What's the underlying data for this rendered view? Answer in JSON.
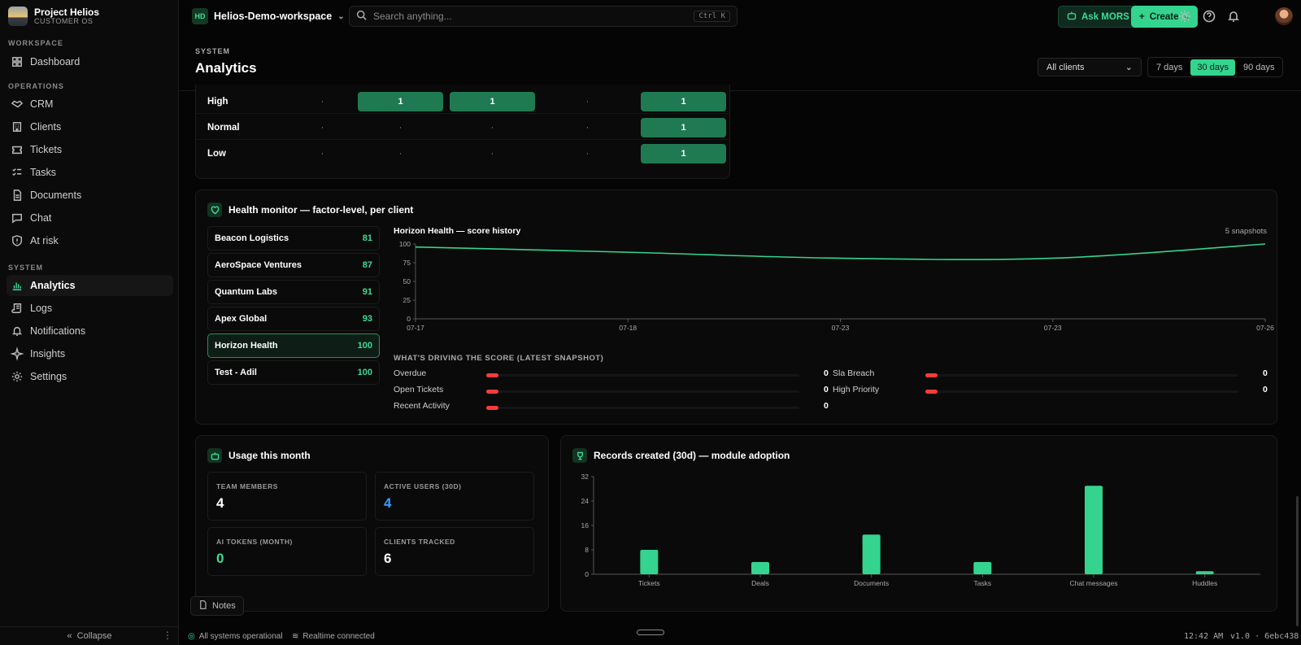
{
  "brand": {
    "title": "Project Helios",
    "subtitle": "CUSTOMER OS"
  },
  "sidebar": {
    "sections": [
      {
        "label": "WORKSPACE"
      },
      {
        "label": "OPERATIONS"
      },
      {
        "label": "SYSTEM"
      }
    ],
    "items": [
      {
        "label": "Dashboard",
        "icon": "grid-icon"
      },
      {
        "label": "CRM",
        "icon": "handshake-icon"
      },
      {
        "label": "Clients",
        "icon": "building-icon"
      },
      {
        "label": "Tickets",
        "icon": "ticket-icon"
      },
      {
        "label": "Tasks",
        "icon": "list-check-icon"
      },
      {
        "label": "Documents",
        "icon": "file-icon"
      },
      {
        "label": "Chat",
        "icon": "chat-icon"
      },
      {
        "label": "At risk",
        "icon": "shield-icon"
      },
      {
        "label": "Analytics",
        "icon": "bar-chart-icon",
        "active": true
      },
      {
        "label": "Logs",
        "icon": "scroll-icon"
      },
      {
        "label": "Notifications",
        "icon": "bell-icon"
      },
      {
        "label": "Insights",
        "icon": "sparkle-icon"
      },
      {
        "label": "Settings",
        "icon": "gear-icon"
      }
    ],
    "collapse_label": "Collapse"
  },
  "topbar": {
    "workspace_badge": "HD",
    "workspace_name": "Helios-Demo-workspace",
    "search_placeholder": "Search anything...",
    "search_shortcut": "Ctrl K",
    "ask_label": "Ask MORS",
    "create_label": "Create"
  },
  "page": {
    "eyebrow": "SYSTEM",
    "title": "Analytics",
    "client_filter": "All clients",
    "ranges": [
      "7 days",
      "30 days",
      "90 days"
    ],
    "selected_range": "30 days"
  },
  "priority_matrix": {
    "rows": [
      {
        "label": "High",
        "cells": [
          "·",
          "1",
          "1",
          "·",
          "1"
        ]
      },
      {
        "label": "Normal",
        "cells": [
          "·",
          "·",
          "·",
          "·",
          "1"
        ]
      },
      {
        "label": "Low",
        "cells": [
          "·",
          "·",
          "·",
          "·",
          "1"
        ]
      }
    ]
  },
  "health": {
    "title": "Health monitor — factor-level, per client",
    "clients": [
      {
        "name": "Beacon Logistics",
        "score": "81"
      },
      {
        "name": "AeroSpace Ventures",
        "score": "87"
      },
      {
        "name": "Quantum Labs",
        "score": "91"
      },
      {
        "name": "Apex Global",
        "score": "93"
      },
      {
        "name": "Horizon Health",
        "score": "100",
        "selected": true
      },
      {
        "name": "Test - Adil",
        "score": "100"
      }
    ],
    "history_title": "Horizon Health — score history",
    "snapshots": "5 snapshots",
    "drivers_title": "WHAT'S DRIVING THE SCORE (LATEST SNAPSHOT)",
    "drivers": [
      {
        "label": "Overdue",
        "value": "0"
      },
      {
        "label": "Sla Breach",
        "value": "0"
      },
      {
        "label": "Open Tickets",
        "value": "0"
      },
      {
        "label": "High Priority",
        "value": "0"
      },
      {
        "label": "Recent Activity",
        "value": "0"
      }
    ]
  },
  "usage": {
    "title": "Usage this month",
    "stats": [
      {
        "label": "TEAM MEMBERS",
        "value": "4",
        "color": "#ffffff"
      },
      {
        "label": "ACTIVE USERS (30D)",
        "value": "4",
        "color": "#3b9dff"
      },
      {
        "label": "AI TOKENS (MONTH)",
        "value": "0",
        "color": "#3ddc97"
      },
      {
        "label": "CLIENTS TRACKED",
        "value": "6",
        "color": "#ffffff"
      }
    ]
  },
  "records": {
    "title": "Records created (30d) — module adoption"
  },
  "notes_label": "Notes",
  "status": {
    "systems": "All systems operational",
    "realtime": "Realtime connected",
    "time": "12:42 AM",
    "version": "v1.0 · 6ebc438"
  },
  "colors": {
    "accent": "#34d48e",
    "danger": "#ff3b3b",
    "info": "#3b9dff"
  },
  "chart_data": [
    {
      "type": "line",
      "title": "Horizon Health — score history",
      "x": [
        "07-17",
        "07-18",
        "07-23",
        "07-23",
        "07-26"
      ],
      "series": [
        {
          "values": [
            96,
            89,
            81,
            81,
            100
          ]
        }
      ],
      "ylim": [
        0,
        100
      ],
      "yticks": [
        0,
        25,
        50,
        75,
        100
      ],
      "grid": false,
      "xlabel": "",
      "ylabel": ""
    },
    {
      "type": "bar",
      "title": "Records created (30d) — module adoption",
      "categories": [
        "Tickets",
        "Deals",
        "Documents",
        "Tasks",
        "Chat messages",
        "Huddles"
      ],
      "values": [
        8,
        4,
        13,
        4,
        29,
        1
      ],
      "ylim": [
        0,
        32
      ],
      "yticks": [
        0,
        8,
        16,
        24,
        32
      ],
      "grid": false,
      "xlabel": "",
      "ylabel": ""
    }
  ]
}
